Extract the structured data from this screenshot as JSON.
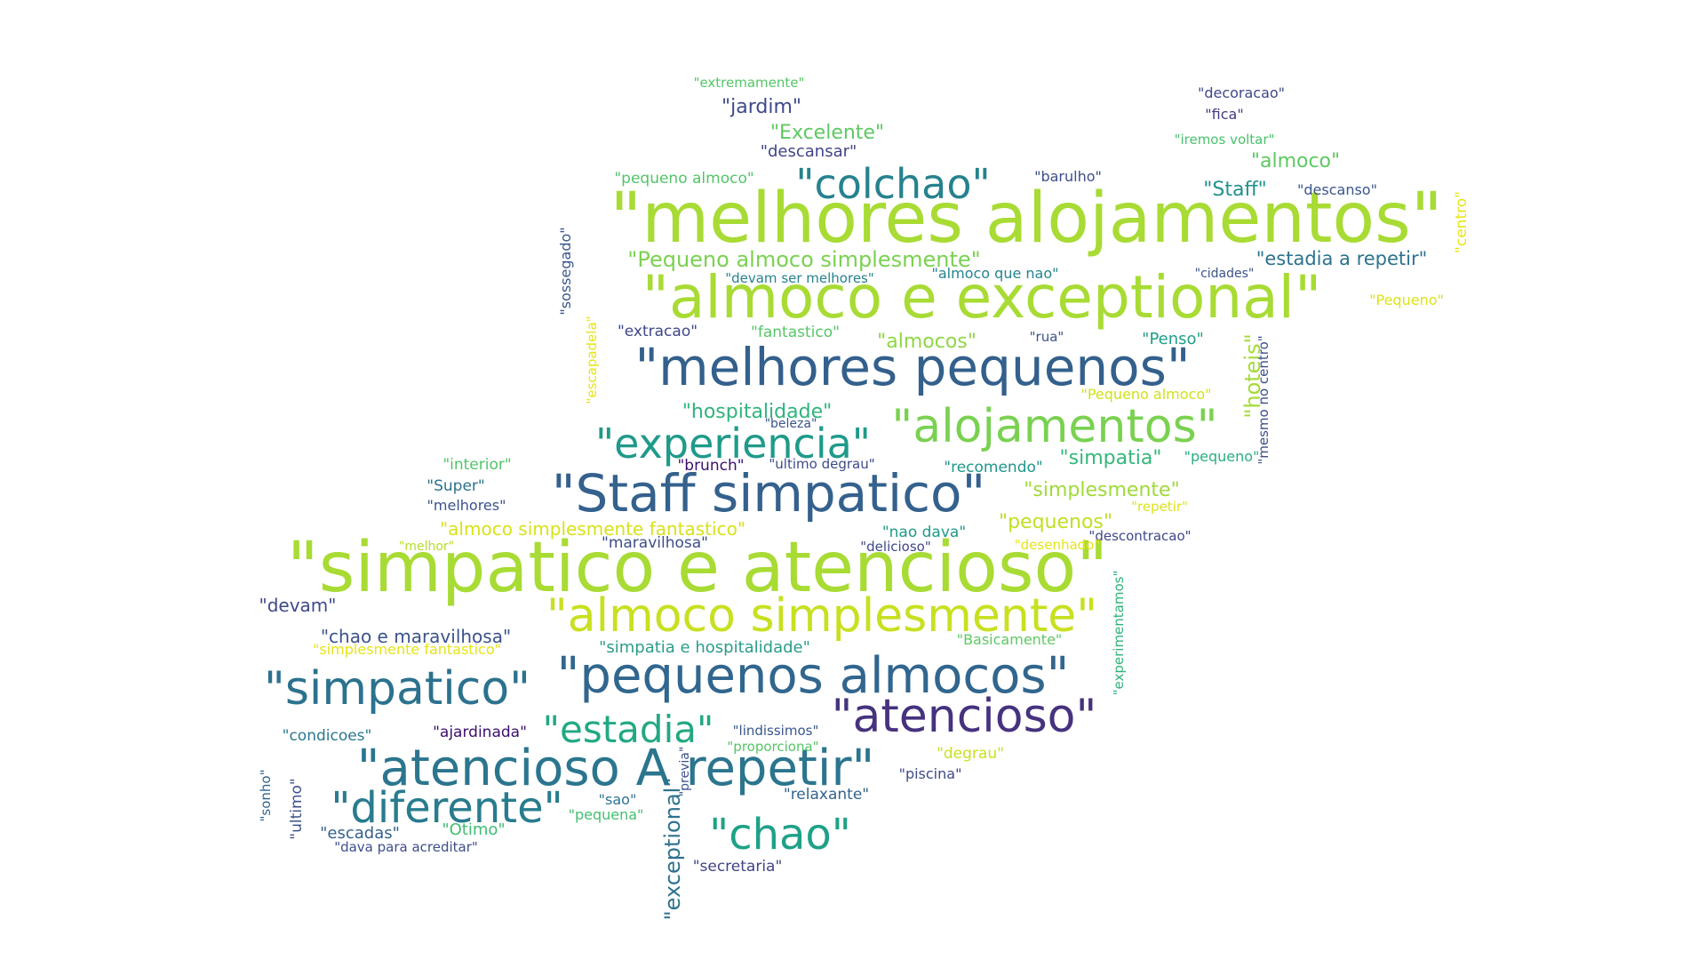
{
  "cloud": {
    "words": [
      {
        "text": "\"melhores alojamentos\"",
        "color": "#a8db34"
      },
      {
        "text": "\"almoco e exceptional\"",
        "color": "#a8db34"
      },
      {
        "text": "\"simpatico e atencioso\"",
        "color": "#a8db34"
      },
      {
        "text": "\"melhores pequenos\"",
        "color": "#33608c"
      },
      {
        "text": "\"Staff simpatico\"",
        "color": "#34618d"
      },
      {
        "text": "\"pequenos almocos\"",
        "color": "#31668e"
      },
      {
        "text": "\"almoco simplesmente\"",
        "color": "#c8e020"
      },
      {
        "text": "\"alojamentos\"",
        "color": "#7ad151"
      },
      {
        "text": "\"experiencia\"",
        "color": "#1f9a8a"
      },
      {
        "text": "\"atencioso A repetir\"",
        "color": "#2b758e"
      },
      {
        "text": "\"atencioso\"",
        "color": "#46327e"
      },
      {
        "text": "\"simpatico\"",
        "color": "#2c728e"
      },
      {
        "text": "\"diferente\"",
        "color": "#287c8e"
      },
      {
        "text": "\"colchao\"",
        "color": "#26828e"
      },
      {
        "text": "\"estadia\"",
        "color": "#22a884"
      },
      {
        "text": "\"chao\"",
        "color": "#1fa187"
      },
      {
        "text": "\"Pequeno almoco simplesmente\"",
        "color": "#7ad151"
      },
      {
        "text": "\"estadia a repetir\"",
        "color": "#2c728e"
      },
      {
        "text": "\"hospitalidade\"",
        "color": "#2fb47c"
      },
      {
        "text": "\"almoco simplesmente fantastico\"",
        "color": "#d8e219"
      },
      {
        "text": "\"chao e maravilhosa\"",
        "color": "#3b528b"
      },
      {
        "text": "\"simpatia e hospitalidade\"",
        "color": "#2a9d8a"
      },
      {
        "text": "\"exceptional\"",
        "color": "#2c728e"
      },
      {
        "text": "\"hoteis\"",
        "color": "#a5db36"
      },
      {
        "text": "\"jardim\"",
        "color": "#3e4a89"
      },
      {
        "text": "\"Excelente\"",
        "color": "#5ec962"
      },
      {
        "text": "\"almoco\"",
        "color": "#5ec962"
      },
      {
        "text": "\"Staff\"",
        "color": "#21918c"
      },
      {
        "text": "\"simpatia\"",
        "color": "#35b779"
      },
      {
        "text": "\"simplesmente\"",
        "color": "#a0da39"
      },
      {
        "text": "\"pequenos\"",
        "color": "#c2df23"
      },
      {
        "text": "\"almocos\"",
        "color": "#8fd744"
      },
      {
        "text": "\"Penso\"",
        "color": "#1f9e89"
      },
      {
        "text": "\"devam\"",
        "color": "#3e4989"
      },
      {
        "text": "\"descansar\"",
        "color": "#414487"
      },
      {
        "text": "\"extremamente\"",
        "color": "#54c568"
      },
      {
        "text": "\"decoracao\"",
        "color": "#3f4788"
      },
      {
        "text": "\"fica\"",
        "color": "#443983"
      },
      {
        "text": "\"iremos voltar\"",
        "color": "#4ac16d"
      },
      {
        "text": "\"descanso\"",
        "color": "#3a548c"
      },
      {
        "text": "\"barulho\"",
        "color": "#3d4d8a"
      },
      {
        "text": "\"pequeno almoco\"",
        "color": "#52c569"
      },
      {
        "text": "\"centro\"",
        "color": "#e7e419"
      },
      {
        "text": "\"sossegado\"",
        "color": "#39568c"
      },
      {
        "text": "\"devam ser melhores\"",
        "color": "#26828e"
      },
      {
        "text": "\"almoco que nao\"",
        "color": "#25838e"
      },
      {
        "text": "\"cidades\"",
        "color": "#3b528b"
      },
      {
        "text": "\"Pequeno\"",
        "color": "#dde318"
      },
      {
        "text": "\"escapadela\"",
        "color": "#e5e419"
      },
      {
        "text": "\"extracao\"",
        "color": "#3f4788"
      },
      {
        "text": "\"fantastico\"",
        "color": "#56c667"
      },
      {
        "text": "\"rua\"",
        "color": "#3b528b"
      },
      {
        "text": "\"mesmo no centro\"",
        "color": "#3d4e8a"
      },
      {
        "text": "\"Pequeno almoco\"",
        "color": "#d0e11c"
      },
      {
        "text": "\"beleza\"",
        "color": "#3b528b"
      },
      {
        "text": "\"interior\"",
        "color": "#52c569"
      },
      {
        "text": "\"brunch\"",
        "color": "#3b0f70"
      },
      {
        "text": "\"ultimo degrau\"",
        "color": "#3e4a89"
      },
      {
        "text": "\"recomendo\"",
        "color": "#1f968b"
      },
      {
        "text": "\"pequeno\"",
        "color": "#29af7f"
      },
      {
        "text": "\"Super\"",
        "color": "#2d718e"
      },
      {
        "text": "\"melhores\"",
        "color": "#3b528b"
      },
      {
        "text": "\"repetir\"",
        "color": "#dde318"
      },
      {
        "text": "\"nao dava\"",
        "color": "#1f9a8a"
      },
      {
        "text": "\"descontracao\"",
        "color": "#3f4889"
      },
      {
        "text": "\"melhor\"",
        "color": "#b5de2b"
      },
      {
        "text": "\"maravilhosa\"",
        "color": "#3d4e8a"
      },
      {
        "text": "\"delicioso\"",
        "color": "#3f4788"
      },
      {
        "text": "\"desenhado\"",
        "color": "#e5e419"
      },
      {
        "text": "\"experimentamos\"",
        "color": "#2fb47c"
      },
      {
        "text": "\"simplesmente fantastico\"",
        "color": "#e5e419"
      },
      {
        "text": "\"Basicamente\"",
        "color": "#5ec962"
      },
      {
        "text": "\"condicoes\"",
        "color": "#2a788e"
      },
      {
        "text": "\"ajardinada\"",
        "color": "#3b0f70"
      },
      {
        "text": "\"lindissimos\"",
        "color": "#39568c"
      },
      {
        "text": "\"proporciona\"",
        "color": "#54c568"
      },
      {
        "text": "\"previa\"",
        "color": "#3b528b"
      },
      {
        "text": "\"degrau\"",
        "color": "#cae11f"
      },
      {
        "text": "\"piscina\"",
        "color": "#3e4a89"
      },
      {
        "text": "\"relaxante\"",
        "color": "#33638d"
      },
      {
        "text": "\"sonho\"",
        "color": "#32648e"
      },
      {
        "text": "\"ultimo\"",
        "color": "#3b528b"
      },
      {
        "text": "\"sao\"",
        "color": "#2c728e"
      },
      {
        "text": "\"pequena\"",
        "color": "#44bf70"
      },
      {
        "text": "\"escadas\"",
        "color": "#34618d"
      },
      {
        "text": "\"Otimo\"",
        "color": "#40bd72"
      },
      {
        "text": "\"dava para acreditar\"",
        "color": "#3d4e8a"
      },
      {
        "text": "\"secretaria\"",
        "color": "#414487"
      }
    ]
  }
}
